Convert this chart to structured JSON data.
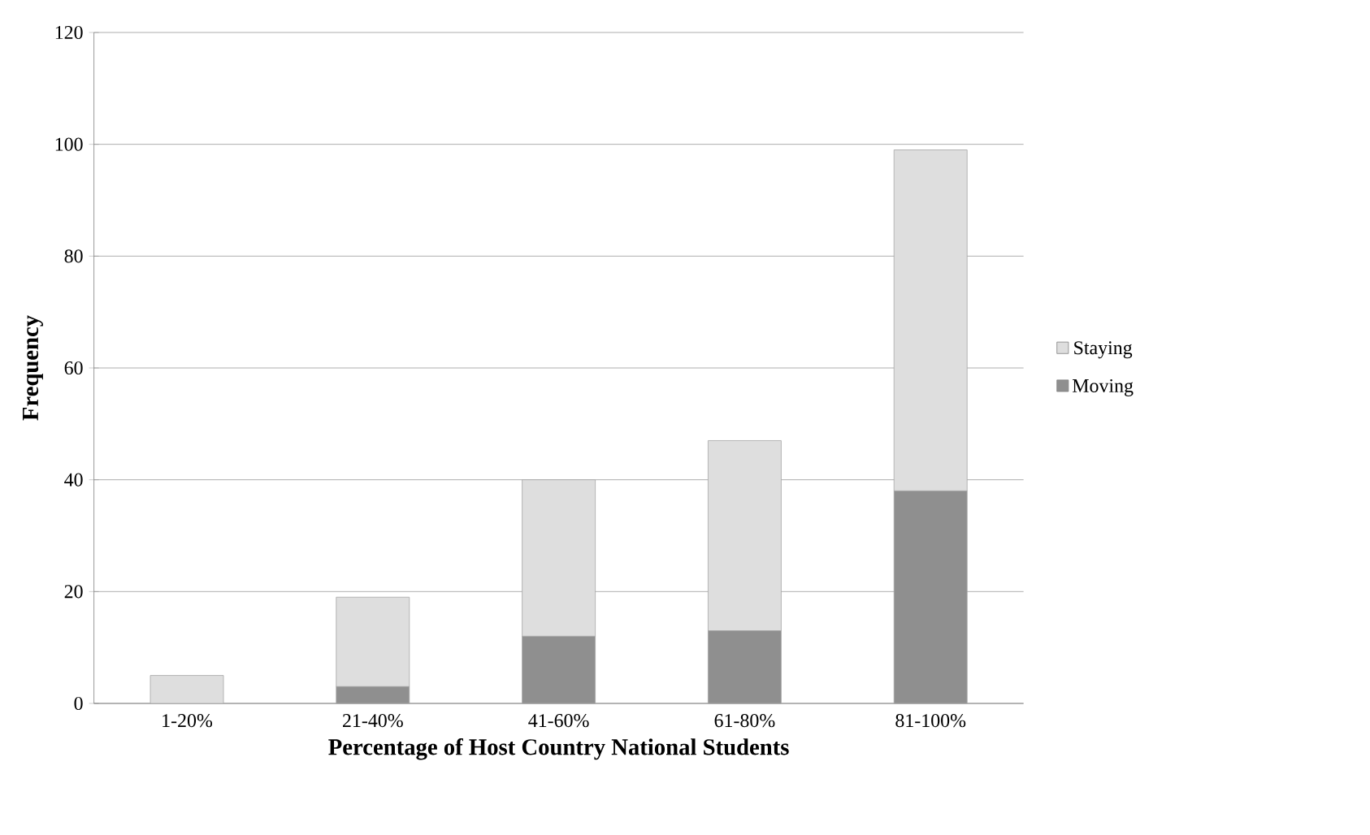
{
  "chart_data": {
    "type": "bar",
    "stacked": true,
    "xlabel": "Percentage of Host Country National Students",
    "ylabel": "Frequency",
    "categories": [
      "1-20%",
      "21-40%",
      "41-60%",
      "61-80%",
      "81-100%"
    ],
    "series": [
      {
        "name": "Moving",
        "color": "#8f8f8f",
        "values": [
          0,
          3,
          12,
          13,
          38
        ]
      },
      {
        "name": "Staying",
        "color": "#dedede",
        "values": [
          5,
          16,
          28,
          34,
          61
        ]
      }
    ],
    "ylim": [
      0,
      120
    ],
    "yticks": [
      0,
      20,
      40,
      60,
      80,
      100,
      120
    ],
    "grid": "y",
    "legend": "right"
  }
}
